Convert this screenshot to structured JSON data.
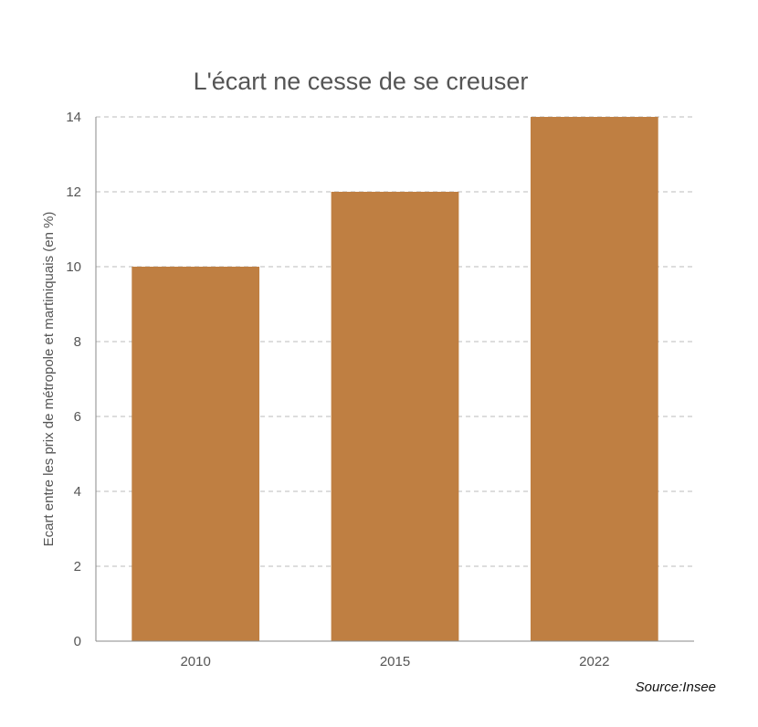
{
  "chart_data": {
    "type": "bar",
    "title": "L'écart ne cesse de se creuser",
    "xlabel": "",
    "ylabel": "Ecart entre les prix de métropole et martiniquais (en %)",
    "categories": [
      "2010",
      "2015",
      "2022"
    ],
    "values": [
      10,
      12,
      14
    ],
    "ylim": [
      0,
      14
    ],
    "yticks": [
      0,
      2,
      4,
      6,
      8,
      10,
      12,
      14
    ],
    "grid": true,
    "bar_color": "#BF7F42",
    "source": "Source:Insee"
  }
}
